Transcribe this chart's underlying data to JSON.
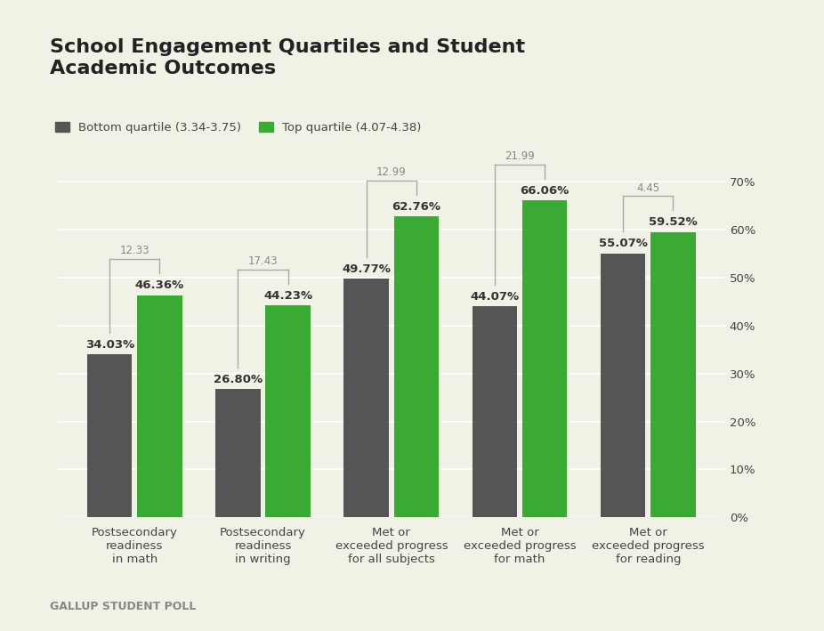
{
  "title": "School Engagement Quartiles and Student\nAcademic Outcomes",
  "categories": [
    "Postsecondary\nreadiness\nin math",
    "Postsecondary\nreadiness\nin writing",
    "Met or\nexceeded progress\nfor all subjects",
    "Met or\nexceeded progress\nfor math",
    "Met or\nexceeded progress\nfor reading"
  ],
  "bottom_values": [
    34.03,
    26.8,
    49.77,
    44.07,
    55.07
  ],
  "top_values": [
    46.36,
    44.23,
    62.76,
    66.06,
    59.52
  ],
  "differences": [
    "12.33",
    "17.43",
    "12.99",
    "21.99",
    "4.45"
  ],
  "bottom_labels": [
    "34.03%",
    "26.80%",
    "49.77%",
    "44.07%",
    "55.07%"
  ],
  "top_labels": [
    "46.36%",
    "44.23%",
    "62.76%",
    "66.06%",
    "59.52%"
  ],
  "bottom_color": "#555555",
  "top_color": "#3aaa35",
  "background_color": "#f0f2e6",
  "legend_bottom": "Bottom quartile (3.34-3.75)",
  "legend_top": "Top quartile (4.07-4.38)",
  "footer": "GALLUP STUDENT POLL",
  "ylim": [
    0,
    75
  ],
  "yticks": [
    0,
    10,
    20,
    30,
    40,
    50,
    60,
    70
  ],
  "ytick_labels": [
    "0%",
    "10%",
    "20%",
    "30%",
    "40%",
    "50%",
    "60%",
    "70%"
  ]
}
